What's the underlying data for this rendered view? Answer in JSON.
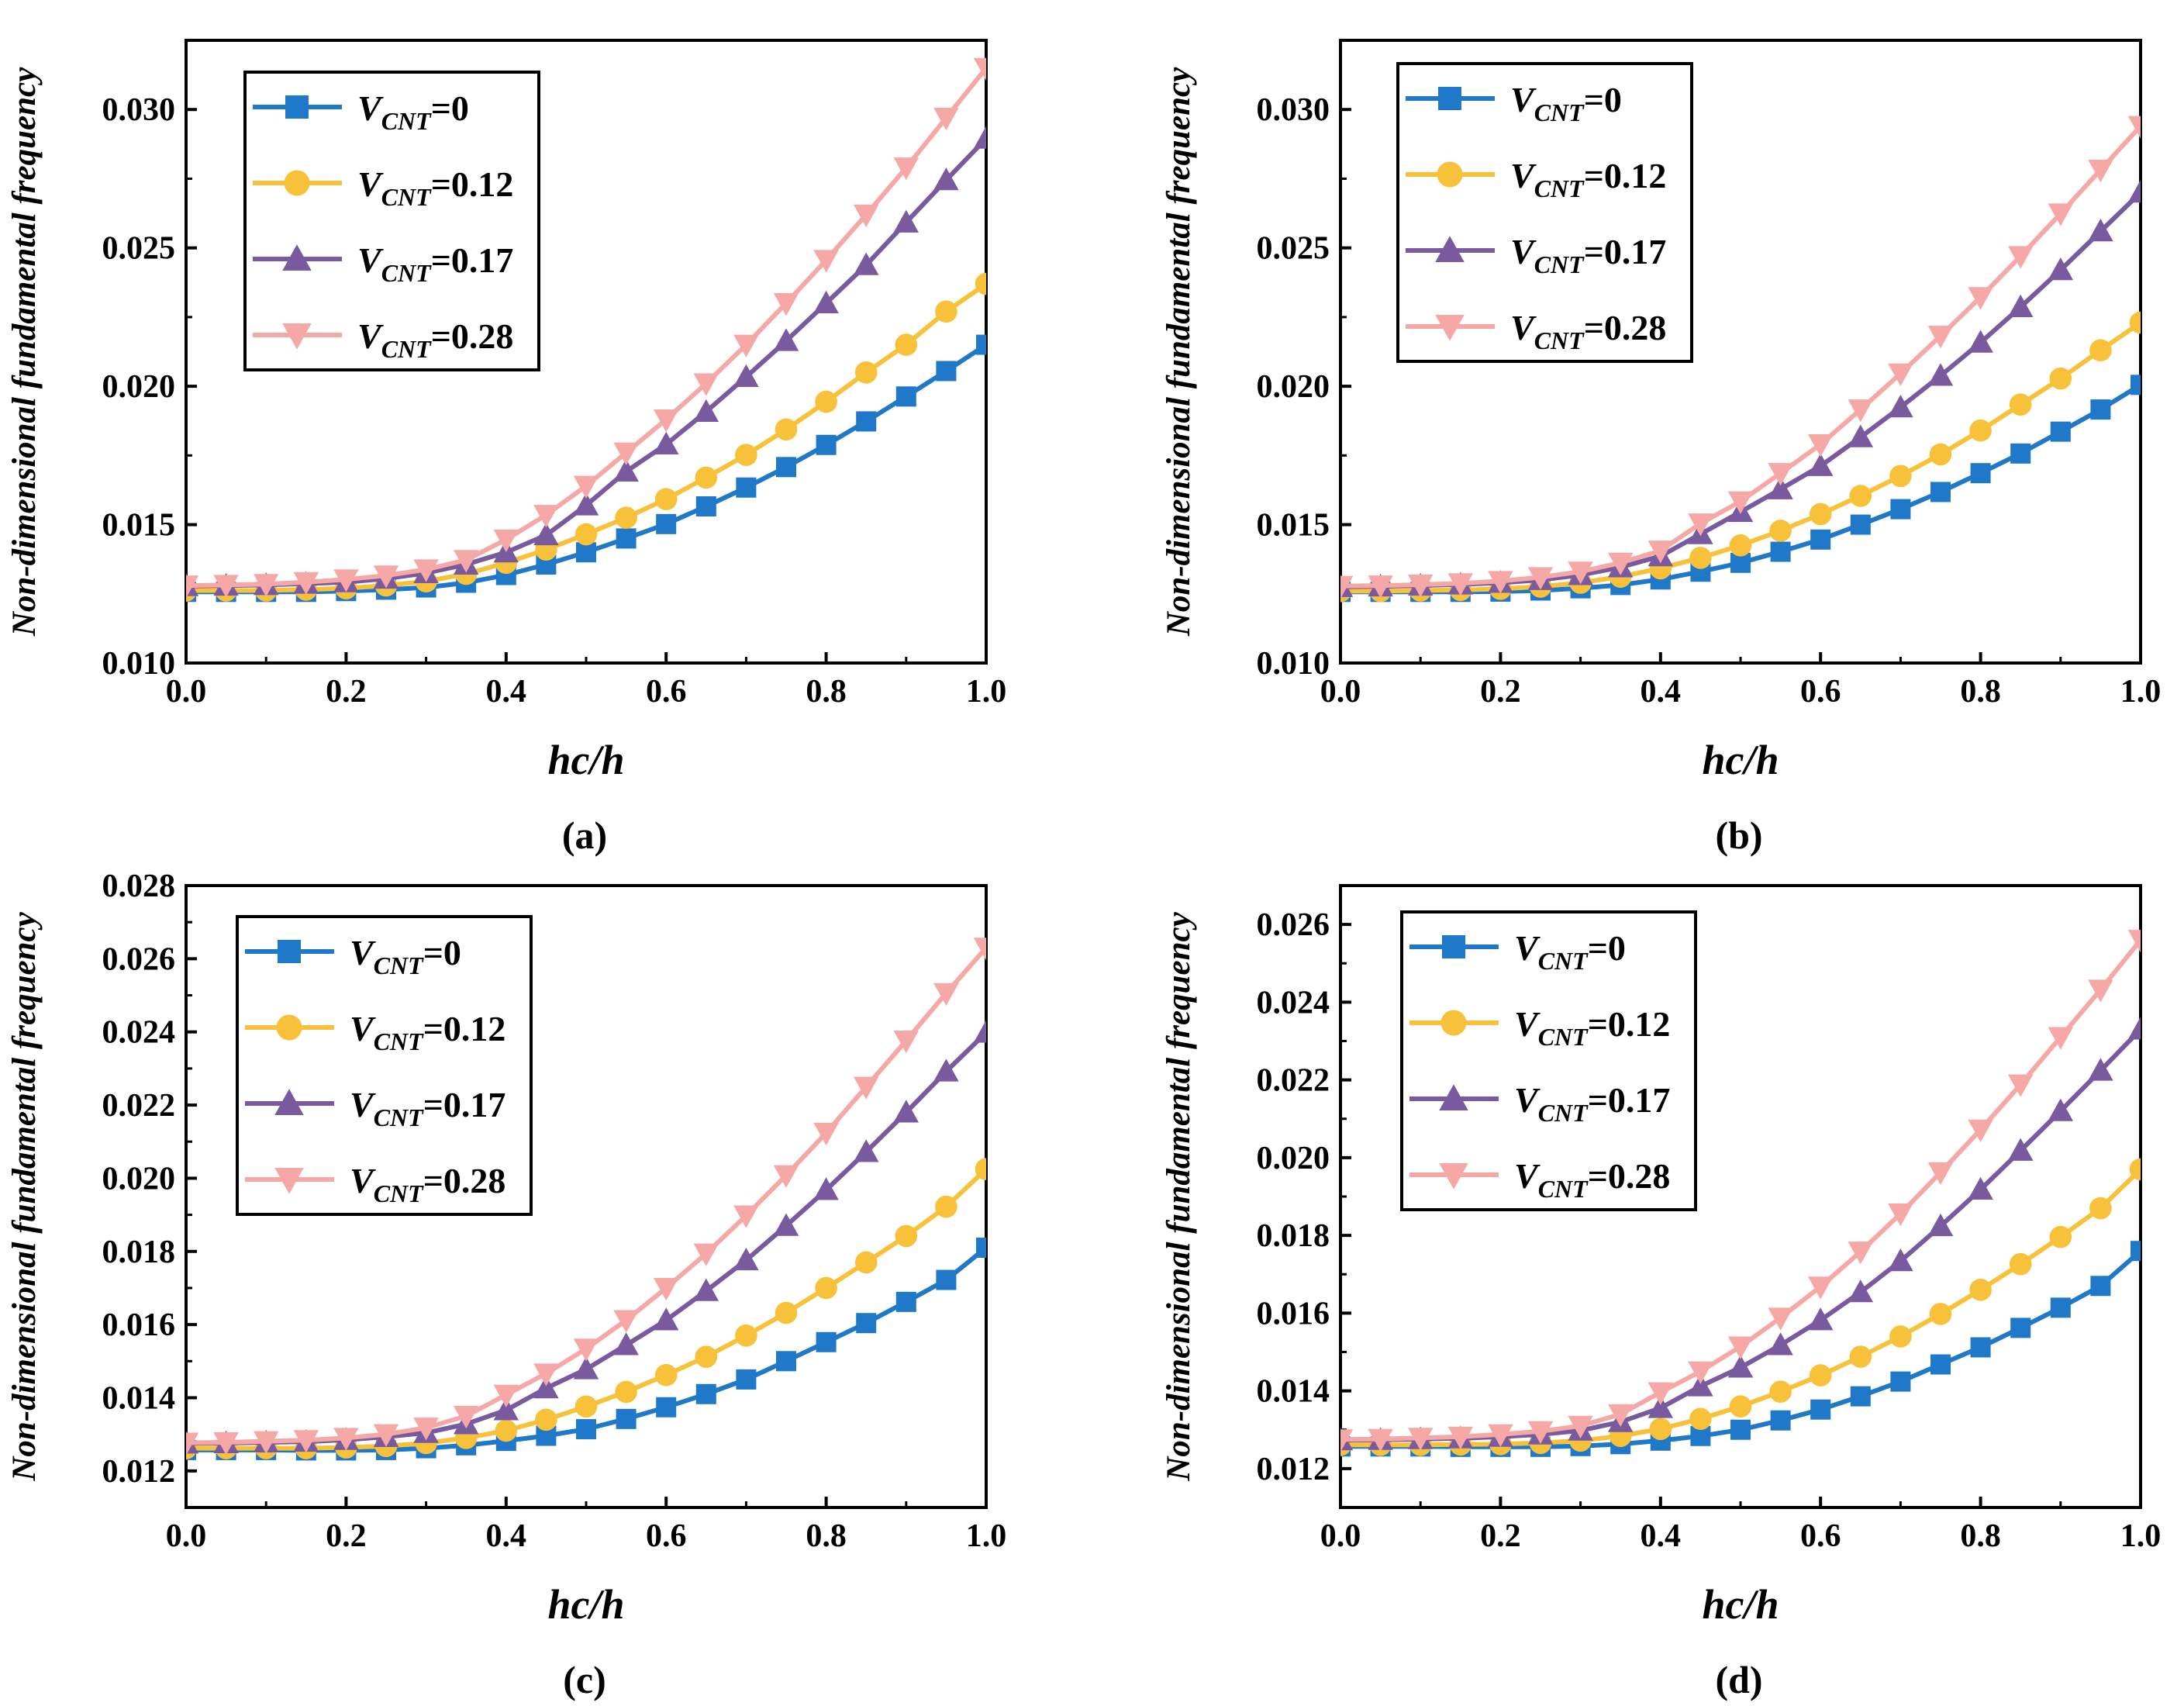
{
  "legend_prefix": "V",
  "legend_sub": "CNT",
  "colors": {
    "V0": "#1f78c8",
    "V012": "#f8c13a",
    "V017": "#7a5a9e",
    "V028": "#f6a8a6"
  },
  "chart_data": [
    {
      "type": "line",
      "panel_label": "(a)",
      "xlabel": "hc/h",
      "ylabel": "Non-dimensional fundamental frequency",
      "xlim": [
        0.0,
        1.0
      ],
      "ylim": [
        0.01,
        0.0325
      ],
      "xticks": [
        0.0,
        0.2,
        0.4,
        0.6,
        0.8,
        1.0
      ],
      "xtick_labels": [
        "0.0",
        "0.2",
        "0.4",
        "0.6",
        "0.8",
        "1.0"
      ],
      "yticks": [
        0.01,
        0.015,
        0.02,
        0.025,
        0.03
      ],
      "ytick_labels": [
        "0.010",
        "0.015",
        "0.020",
        "0.025",
        "0.030"
      ],
      "x": [
        0.0,
        0.05,
        0.1,
        0.15,
        0.2,
        0.25,
        0.3,
        0.35,
        0.4,
        0.45,
        0.5,
        0.55,
        0.6,
        0.65,
        0.7,
        0.75,
        0.8,
        0.85,
        0.9,
        0.95,
        1.0
      ],
      "series": [
        {
          "name": "0",
          "legend_value": "=0",
          "marker": "square",
          "color_key": "V0",
          "values": [
            0.01257,
            0.01257,
            0.01257,
            0.01257,
            0.0126,
            0.01265,
            0.01273,
            0.0129,
            0.01318,
            0.01356,
            0.014,
            0.0145,
            0.01502,
            0.01566,
            0.01634,
            0.01708,
            0.01788,
            0.01873,
            0.01963,
            0.02055,
            0.0215
          ]
        },
        {
          "name": "0.12",
          "legend_value": "=0.12",
          "marker": "circle",
          "color_key": "V012",
          "values": [
            0.01262,
            0.01262,
            0.01262,
            0.01265,
            0.0127,
            0.0128,
            0.01295,
            0.01322,
            0.01362,
            0.0141,
            0.01465,
            0.01525,
            0.01592,
            0.0167,
            0.01752,
            0.01844,
            0.01944,
            0.0205,
            0.0215,
            0.0227,
            0.0237
          ]
        },
        {
          "name": "0.17",
          "legend_value": "=0.17",
          "marker": "triangle-up",
          "color_key": "V017",
          "values": [
            0.01278,
            0.0128,
            0.01282,
            0.01287,
            0.01292,
            0.01305,
            0.01325,
            0.01356,
            0.014,
            0.01462,
            0.0157,
            0.01692,
            0.0179,
            0.01908,
            0.02034,
            0.02164,
            0.023,
            0.02438,
            0.02592,
            0.02745,
            0.02895
          ]
        },
        {
          "name": "0.28",
          "legend_value": "=0.28",
          "marker": "triangle-down",
          "color_key": "V028",
          "values": [
            0.0128,
            0.01282,
            0.01285,
            0.01292,
            0.01302,
            0.01316,
            0.01338,
            0.01372,
            0.01446,
            0.01535,
            0.0164,
            0.0176,
            0.0188,
            0.0201,
            0.0215,
            0.023,
            0.02456,
            0.0262,
            0.0279,
            0.0297,
            0.0315
          ]
        }
      ]
    },
    {
      "type": "line",
      "panel_label": "(b)",
      "xlabel": "hc/h",
      "ylabel": "Non-dimensional fundamental frequency",
      "xlim": [
        0.0,
        1.0
      ],
      "ylim": [
        0.01,
        0.0325
      ],
      "xticks": [
        0.0,
        0.2,
        0.4,
        0.6,
        0.8,
        1.0
      ],
      "xtick_labels": [
        "0.0",
        "0.2",
        "0.4",
        "0.6",
        "0.8",
        "1.0"
      ],
      "yticks": [
        0.01,
        0.015,
        0.02,
        0.025,
        0.03
      ],
      "ytick_labels": [
        "0.010",
        "0.015",
        "0.020",
        "0.025",
        "0.030"
      ],
      "x": [
        0.0,
        0.05,
        0.1,
        0.15,
        0.2,
        0.25,
        0.3,
        0.35,
        0.4,
        0.45,
        0.5,
        0.55,
        0.6,
        0.65,
        0.7,
        0.75,
        0.8,
        0.85,
        0.9,
        0.95,
        1.0
      ],
      "series": [
        {
          "name": "0",
          "legend_value": "=0",
          "marker": "square",
          "color_key": "V0",
          "values": [
            0.01257,
            0.01257,
            0.01257,
            0.01257,
            0.01258,
            0.01262,
            0.0127,
            0.01282,
            0.01302,
            0.0133,
            0.01362,
            0.01402,
            0.01446,
            0.015,
            0.01556,
            0.01618,
            0.01686,
            0.01757,
            0.01836,
            0.01916,
            0.02005
          ]
        },
        {
          "name": "0.12",
          "legend_value": "=0.12",
          "marker": "circle",
          "color_key": "V012",
          "values": [
            0.0126,
            0.0126,
            0.01262,
            0.01264,
            0.01268,
            0.01276,
            0.0129,
            0.01312,
            0.01342,
            0.0138,
            0.01425,
            0.01478,
            0.01538,
            0.01604,
            0.01676,
            0.01754,
            0.0184,
            0.01934,
            0.02028,
            0.0213,
            0.0223
          ]
        },
        {
          "name": "0.17",
          "legend_value": "=0.17",
          "marker": "triangle-up",
          "color_key": "V017",
          "values": [
            0.01275,
            0.01277,
            0.0128,
            0.01284,
            0.0129,
            0.013,
            0.01318,
            0.01346,
            0.01386,
            0.01466,
            0.01546,
            0.01628,
            0.01712,
            0.01816,
            0.01924,
            0.02038,
            0.02158,
            0.02286,
            0.0242,
            0.0256,
            0.027
          ]
        },
        {
          "name": "0.28",
          "legend_value": "=0.28",
          "marker": "triangle-down",
          "color_key": "V028",
          "values": [
            0.01278,
            0.0128,
            0.01283,
            0.01288,
            0.01296,
            0.0131,
            0.0133,
            0.01362,
            0.01406,
            0.01504,
            0.01584,
            0.01686,
            0.0179,
            0.01916,
            0.02046,
            0.02182,
            0.02322,
            0.0247,
            0.02624,
            0.02782,
            0.0294
          ]
        }
      ]
    },
    {
      "type": "line",
      "panel_label": "(c)",
      "xlabel": "hc/h",
      "ylabel": "Non-dimensional fundamental frequency",
      "xlim": [
        0.0,
        1.0
      ],
      "ylim": [
        0.011,
        0.028
      ],
      "xticks": [
        0.0,
        0.2,
        0.4,
        0.6,
        0.8,
        1.0
      ],
      "xtick_labels": [
        "0.0",
        "0.2",
        "0.4",
        "0.6",
        "0.8",
        "1.0"
      ],
      "yticks": [
        0.012,
        0.014,
        0.016,
        0.018,
        0.02,
        0.022,
        0.024,
        0.026,
        0.028
      ],
      "ytick_labels": [
        "0.012",
        "0.014",
        "0.016",
        "0.018",
        "0.020",
        "0.022",
        "0.024",
        "0.026",
        "0.028"
      ],
      "x": [
        0.0,
        0.05,
        0.1,
        0.15,
        0.2,
        0.25,
        0.3,
        0.35,
        0.4,
        0.45,
        0.5,
        0.55,
        0.6,
        0.65,
        0.7,
        0.75,
        0.8,
        0.85,
        0.9,
        0.95,
        1.0
      ],
      "series": [
        {
          "name": "0",
          "legend_value": "=0",
          "marker": "square",
          "color_key": "V0",
          "values": [
            0.01257,
            0.01257,
            0.01257,
            0.01256,
            0.01256,
            0.01257,
            0.01262,
            0.0127,
            0.01282,
            0.01296,
            0.01314,
            0.01342,
            0.01374,
            0.0141,
            0.0145,
            0.015,
            0.01552,
            0.01604,
            0.01662,
            0.01722,
            0.0181
          ]
        },
        {
          "name": "0.12",
          "legend_value": "=0.12",
          "marker": "circle",
          "color_key": "V012",
          "values": [
            0.01262,
            0.01262,
            0.01262,
            0.01262,
            0.01264,
            0.01268,
            0.01276,
            0.0129,
            0.0131,
            0.0134,
            0.01376,
            0.01416,
            0.01462,
            0.01512,
            0.0157,
            0.01632,
            0.017,
            0.0177,
            0.01842,
            0.01922,
            0.02025
          ]
        },
        {
          "name": "0.17",
          "legend_value": "=0.17",
          "marker": "triangle-up",
          "color_key": "V017",
          "values": [
            0.01275,
            0.01276,
            0.01278,
            0.0128,
            0.01285,
            0.01293,
            0.01304,
            0.01328,
            0.01366,
            0.01426,
            0.01478,
            0.01544,
            0.01612,
            0.01692,
            0.01776,
            0.0187,
            0.01968,
            0.02072,
            0.0218,
            0.02292,
            0.02398
          ]
        },
        {
          "name": "0.28",
          "legend_value": "=0.28",
          "marker": "triangle-down",
          "color_key": "V028",
          "values": [
            0.01277,
            0.01278,
            0.01281,
            0.01284,
            0.0129,
            0.013,
            0.01318,
            0.0135,
            0.01408,
            0.01466,
            0.01534,
            0.01612,
            0.017,
            0.01794,
            0.01898,
            0.02008,
            0.02124,
            0.0225,
            0.02376,
            0.02506,
            0.0263
          ]
        }
      ]
    },
    {
      "type": "line",
      "panel_label": "(d)",
      "xlabel": "hc/h",
      "ylabel": "Non-dimensional fundamental frequency",
      "xlim": [
        0.0,
        1.0
      ],
      "ylim": [
        0.011,
        0.027
      ],
      "xticks": [
        0.0,
        0.2,
        0.4,
        0.6,
        0.8,
        1.0
      ],
      "xtick_labels": [
        "0.0",
        "0.2",
        "0.4",
        "0.6",
        "0.8",
        "1.0"
      ],
      "yticks": [
        0.012,
        0.014,
        0.016,
        0.018,
        0.02,
        0.022,
        0.024,
        0.026
      ],
      "ytick_labels": [
        "0.012",
        "0.014",
        "0.016",
        "0.018",
        "0.020",
        "0.022",
        "0.024",
        "0.026"
      ],
      "x": [
        0.0,
        0.05,
        0.1,
        0.15,
        0.2,
        0.25,
        0.3,
        0.35,
        0.4,
        0.45,
        0.5,
        0.55,
        0.6,
        0.65,
        0.7,
        0.75,
        0.8,
        0.85,
        0.9,
        0.95,
        1.0
      ],
      "series": [
        {
          "name": "0",
          "legend_value": "=0",
          "marker": "square",
          "color_key": "V0",
          "values": [
            0.01257,
            0.01257,
            0.01257,
            0.01256,
            0.01256,
            0.01256,
            0.01258,
            0.01263,
            0.01272,
            0.01284,
            0.013,
            0.01324,
            0.01352,
            0.01386,
            0.01424,
            0.01468,
            0.01512,
            0.01562,
            0.01614,
            0.0167,
            0.0176
          ]
        },
        {
          "name": "0.12",
          "legend_value": "=0.12",
          "marker": "circle",
          "color_key": "V012",
          "values": [
            0.01261,
            0.01261,
            0.01261,
            0.01262,
            0.01263,
            0.01266,
            0.01272,
            0.01284,
            0.01302,
            0.01328,
            0.0136,
            0.01398,
            0.0144,
            0.01488,
            0.0154,
            0.01598,
            0.0166,
            0.01726,
            0.01796,
            0.0187,
            0.0197
          ]
        },
        {
          "name": "0.17",
          "legend_value": "=0.17",
          "marker": "triangle-up",
          "color_key": "V017",
          "values": [
            0.01273,
            0.01274,
            0.01276,
            0.01278,
            0.01282,
            0.01288,
            0.01298,
            0.0132,
            0.01356,
            0.01412,
            0.0146,
            0.01518,
            0.01582,
            0.01654,
            0.01734,
            0.01824,
            0.01918,
            0.02018,
            0.0212,
            0.02224,
            0.0233
          ]
        },
        {
          "name": "0.28",
          "legend_value": "=0.28",
          "marker": "triangle-down",
          "color_key": "V028",
          "values": [
            0.01275,
            0.01276,
            0.01279,
            0.01282,
            0.01288,
            0.01296,
            0.0131,
            0.0134,
            0.01396,
            0.0145,
            0.01514,
            0.01588,
            0.01668,
            0.01758,
            0.01856,
            0.01962,
            0.02072,
            0.02188,
            0.0231,
            0.02432,
            0.0256
          ]
        }
      ]
    }
  ]
}
